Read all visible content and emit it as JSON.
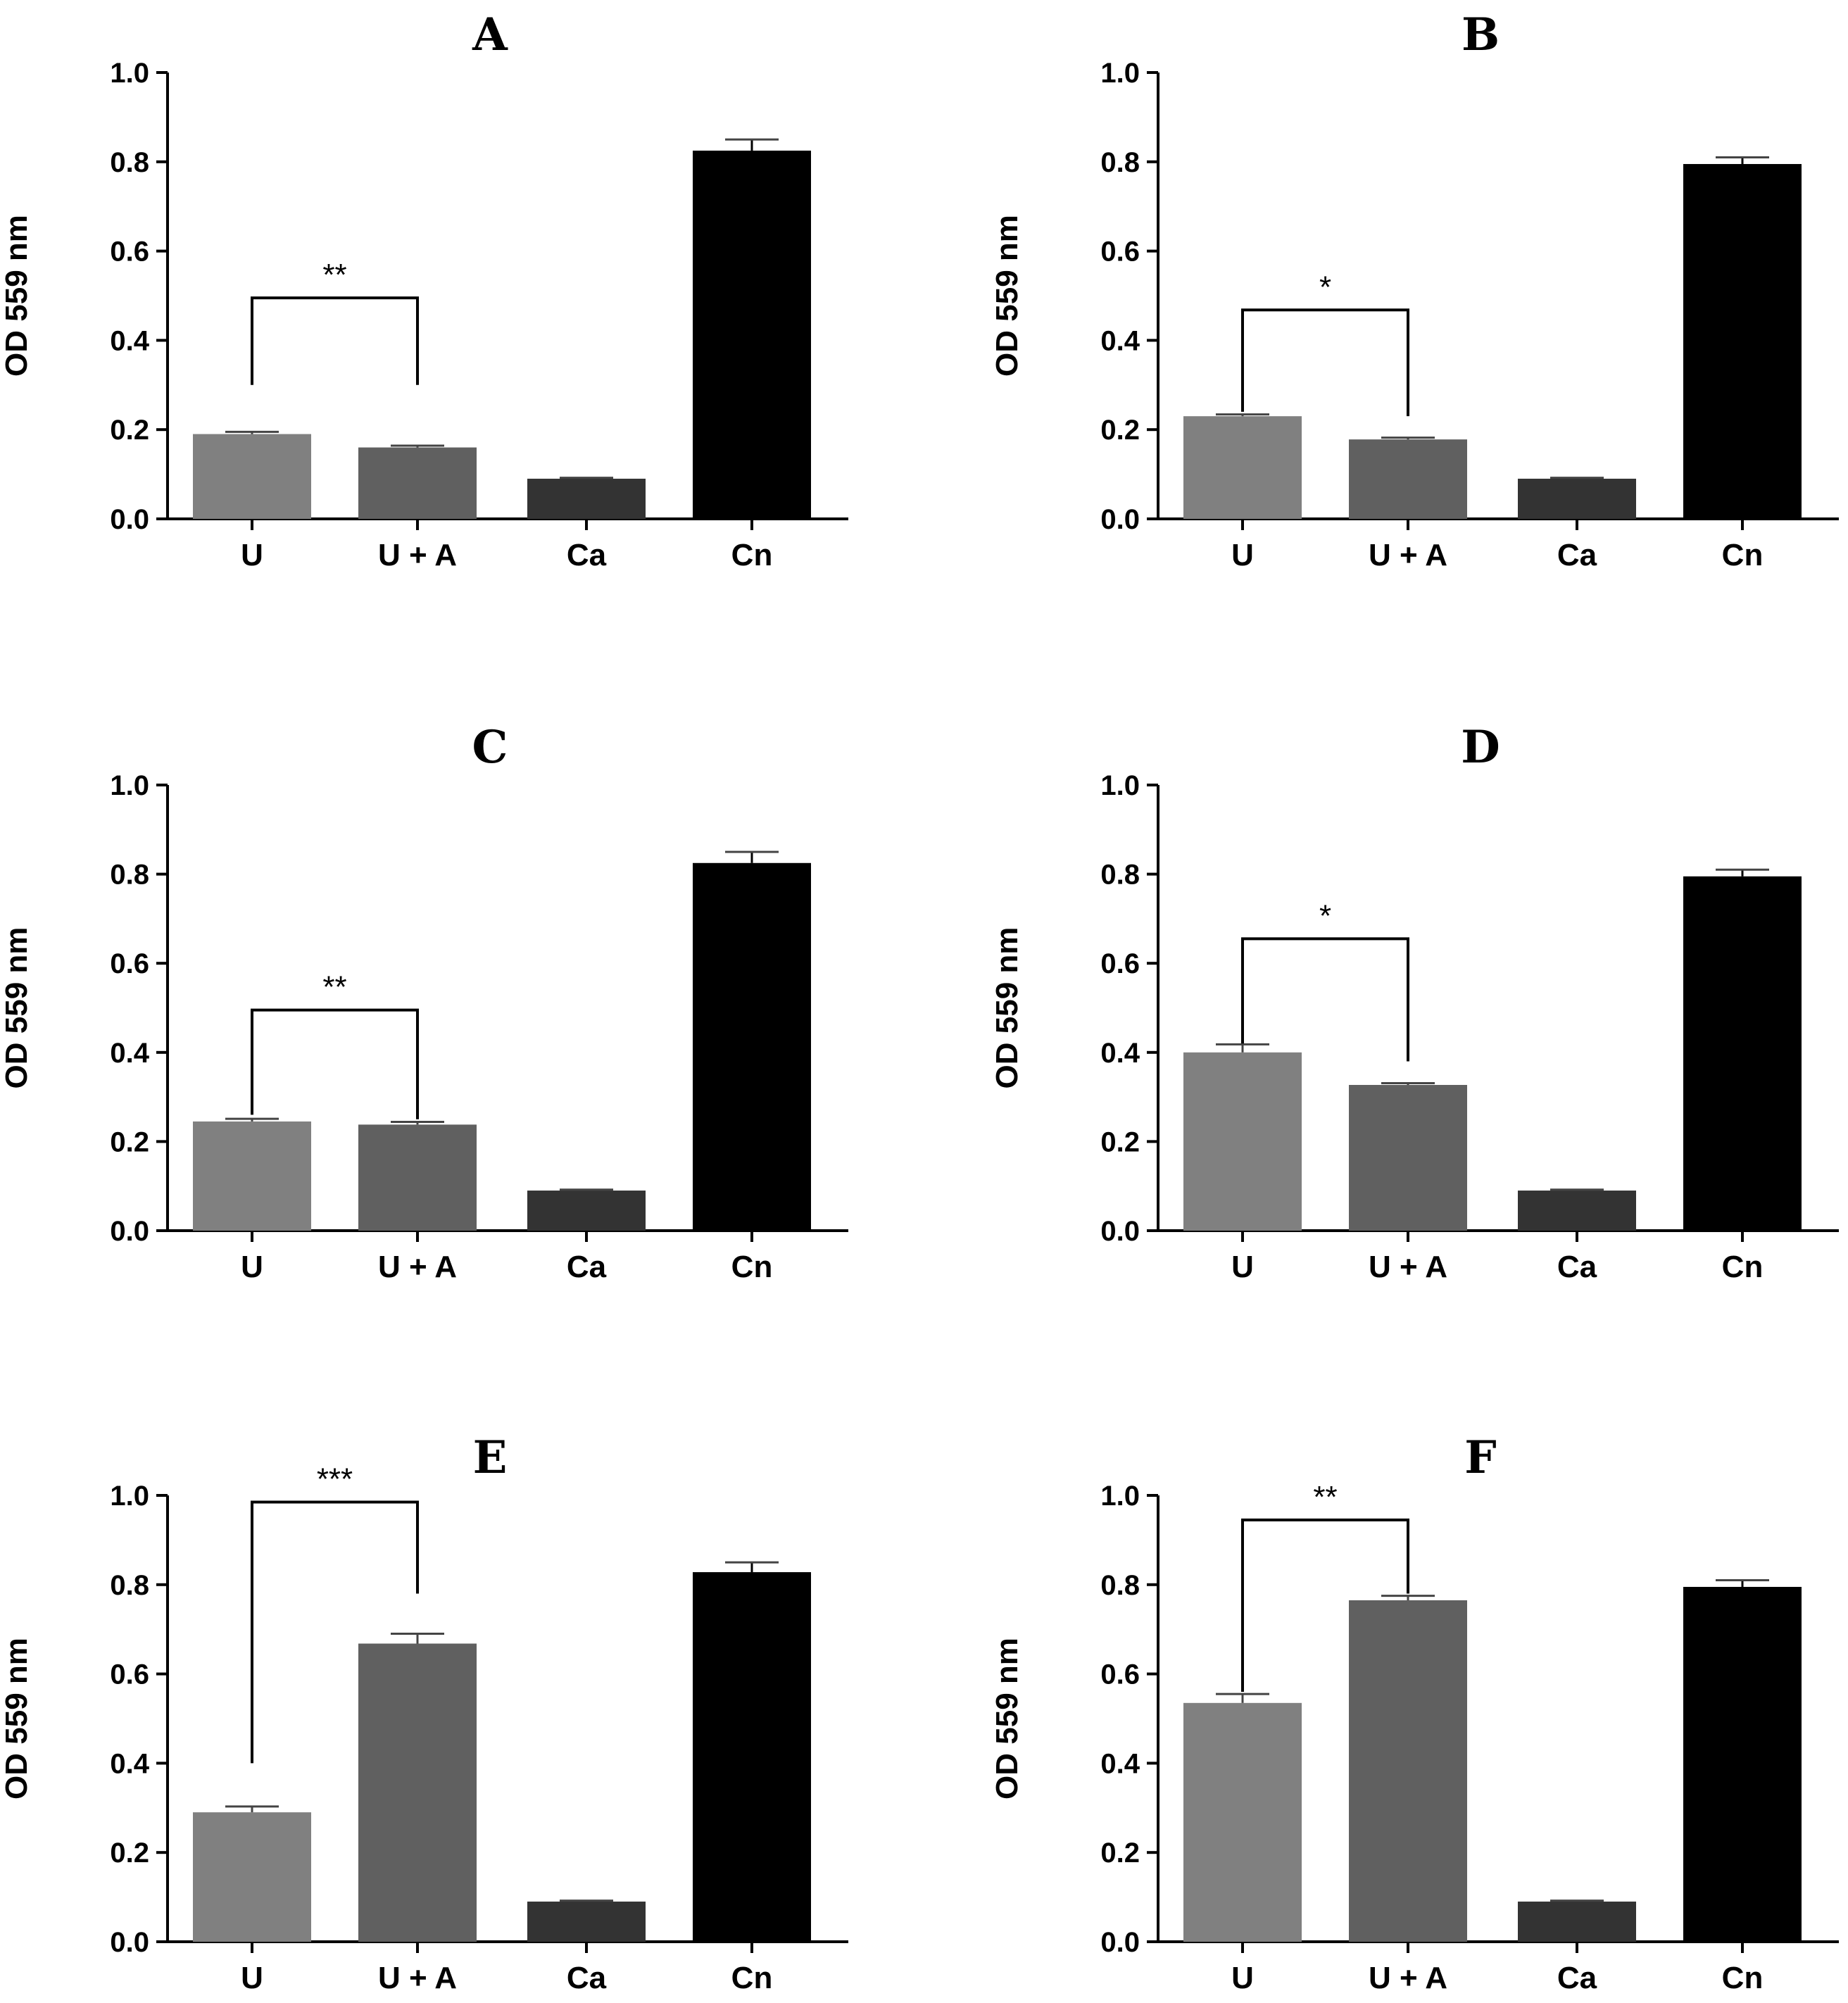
{
  "chart_data": [
    {
      "type": "bar",
      "title": "A",
      "categories": [
        "U",
        "U + A",
        "Ca",
        "Cn"
      ],
      "values": [
        0.19,
        0.16,
        0.09,
        0.825
      ],
      "errors": [
        0.005,
        0.004,
        0.002,
        0.025
      ],
      "colors": [
        "#808080",
        "#606060",
        "#333333",
        "#000000"
      ],
      "ylabel": "OD 559 nm",
      "xlabel": "",
      "ylim": [
        0.0,
        1.0
      ],
      "yticks": [
        "0.0",
        "0.2",
        "0.4",
        "0.6",
        "0.8",
        "1.0"
      ],
      "significance": {
        "from": 0,
        "to": 1,
        "label": "**",
        "bracket_y": 0.495,
        "left_drop_to": 0.3,
        "right_drop_to": 0.3
      }
    },
    {
      "type": "bar",
      "title": "B",
      "categories": [
        "U",
        "U + A",
        "Ca",
        "Cn"
      ],
      "values": [
        0.23,
        0.178,
        0.09,
        0.795
      ],
      "errors": [
        0.004,
        0.004,
        0.002,
        0.015
      ],
      "colors": [
        "#808080",
        "#606060",
        "#333333",
        "#000000"
      ],
      "ylabel": "OD 559 nm",
      "xlabel": "",
      "ylim": [
        0.0,
        1.0
      ],
      "yticks": [
        "0.0",
        "0.2",
        "0.4",
        "0.6",
        "0.8",
        "1.0"
      ],
      "significance": {
        "from": 0,
        "to": 1,
        "label": "*",
        "bracket_y": 0.468,
        "left_drop_to": 0.24,
        "right_drop_to": 0.23
      }
    },
    {
      "type": "bar",
      "title": "C",
      "categories": [
        "U",
        "U + A",
        "Ca",
        "Cn"
      ],
      "values": [
        0.245,
        0.238,
        0.09,
        0.825
      ],
      "errors": [
        0.006,
        0.006,
        0.002,
        0.025
      ],
      "colors": [
        "#808080",
        "#606060",
        "#333333",
        "#000000"
      ],
      "ylabel": "OD 559 nm",
      "xlabel": "",
      "ylim": [
        0.0,
        1.0
      ],
      "yticks": [
        "0.0",
        "0.2",
        "0.4",
        "0.6",
        "0.8",
        "1.0"
      ],
      "significance": {
        "from": 0,
        "to": 1,
        "label": "**",
        "bracket_y": 0.495,
        "left_drop_to": 0.26,
        "right_drop_to": 0.25
      }
    },
    {
      "type": "bar",
      "title": "D",
      "categories": [
        "U",
        "U + A",
        "Ca",
        "Cn"
      ],
      "values": [
        0.4,
        0.327,
        0.09,
        0.795
      ],
      "errors": [
        0.018,
        0.004,
        0.002,
        0.015
      ],
      "colors": [
        "#808080",
        "#606060",
        "#333333",
        "#000000"
      ],
      "ylabel": "OD 559 nm",
      "xlabel": "",
      "ylim": [
        0.0,
        1.0
      ],
      "yticks": [
        "0.0",
        "0.2",
        "0.4",
        "0.6",
        "0.8",
        "1.0"
      ],
      "significance": {
        "from": 0,
        "to": 1,
        "label": "*",
        "bracket_y": 0.655,
        "left_drop_to": 0.42,
        "right_drop_to": 0.38
      }
    },
    {
      "type": "bar",
      "title": "E",
      "categories": [
        "U",
        "U + A",
        "Ca",
        "Cn"
      ],
      "values": [
        0.29,
        0.668,
        0.09,
        0.828
      ],
      "errors": [
        0.013,
        0.022,
        0.002,
        0.022
      ],
      "colors": [
        "#808080",
        "#606060",
        "#333333",
        "#000000"
      ],
      "ylabel": "OD 559 nm",
      "xlabel": "",
      "ylim": [
        0.0,
        1.0
      ],
      "yticks": [
        "0.0",
        "0.2",
        "0.4",
        "0.6",
        "0.8",
        "1.0"
      ],
      "significance": {
        "from": 0,
        "to": 1,
        "label": "***",
        "bracket_y": 0.985,
        "left_drop_to": 0.4,
        "right_drop_to": 0.78
      }
    },
    {
      "type": "bar",
      "title": "F",
      "categories": [
        "U",
        "U + A",
        "Ca",
        "Cn"
      ],
      "values": [
        0.535,
        0.765,
        0.09,
        0.795
      ],
      "errors": [
        0.02,
        0.01,
        0.002,
        0.015
      ],
      "colors": [
        "#808080",
        "#606060",
        "#333333",
        "#000000"
      ],
      "ylabel": "OD 559 nm",
      "xlabel": "",
      "ylim": [
        0.0,
        1.0
      ],
      "yticks": [
        "0.0",
        "0.2",
        "0.4",
        "0.6",
        "0.8",
        "1.0"
      ],
      "significance": {
        "from": 0,
        "to": 1,
        "label": "**",
        "bracket_y": 0.945,
        "left_drop_to": 0.56,
        "right_drop_to": 0.78
      }
    }
  ]
}
